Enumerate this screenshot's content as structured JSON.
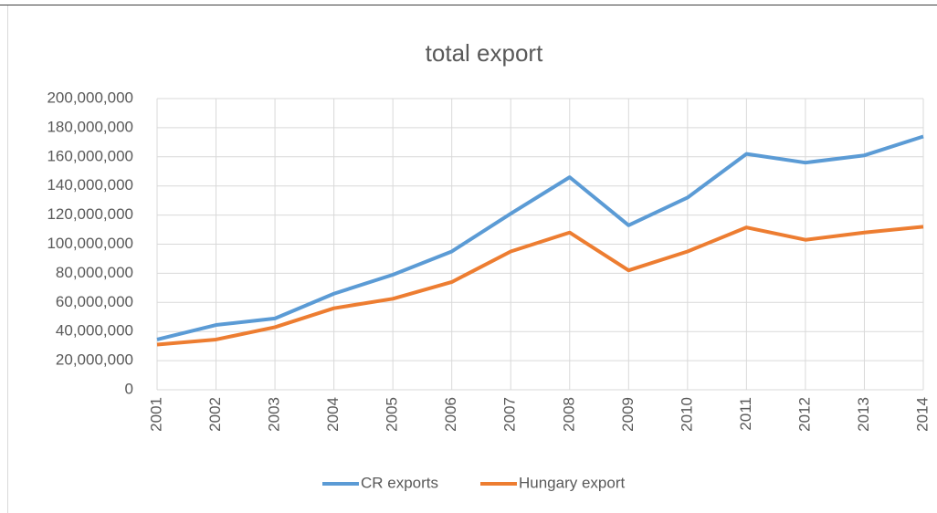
{
  "chart_data": {
    "type": "line",
    "title": "total export",
    "categories": [
      "2001",
      "2002",
      "2003",
      "2004",
      "2005",
      "2006",
      "2007",
      "2008",
      "2009",
      "2010",
      "2011",
      "2012",
      "2013",
      "2014"
    ],
    "series": [
      {
        "name": "CR exports",
        "color": "#5b9bd5",
        "values": [
          34500000,
          44500000,
          49000000,
          66000000,
          79000000,
          95000000,
          121000000,
          146000000,
          113000000,
          132000000,
          162000000,
          156000000,
          161000000,
          174000000
        ]
      },
      {
        "name": "Hungary export",
        "color": "#ed7d31",
        "values": [
          31000000,
          34500000,
          43000000,
          56000000,
          62500000,
          74000000,
          95000000,
          108000000,
          82000000,
          95000000,
          111500000,
          103000000,
          108000000,
          112000000
        ]
      }
    ],
    "ylim": [
      0,
      200000000
    ],
    "yticks": [
      0,
      {
        "value": 20000000,
        "label": "20,000,000"
      },
      {
        "value": 40000000,
        "label": "40,000,000"
      },
      {
        "value": 60000000,
        "label": "60,000,000"
      },
      {
        "value": 80000000,
        "label": "80,000,000"
      },
      {
        "value": 100000000,
        "label": "100,000,000"
      },
      {
        "value": 120000000,
        "label": "120,000,000"
      },
      {
        "value": 140000000,
        "label": "140,000,000"
      },
      {
        "value": 160000000,
        "label": "160,000,000"
      },
      {
        "value": 180000000,
        "label": "180,000,000"
      },
      {
        "value": 200000000,
        "label": "200,000,000"
      }
    ],
    "grid": true,
    "legend": "bottom"
  }
}
